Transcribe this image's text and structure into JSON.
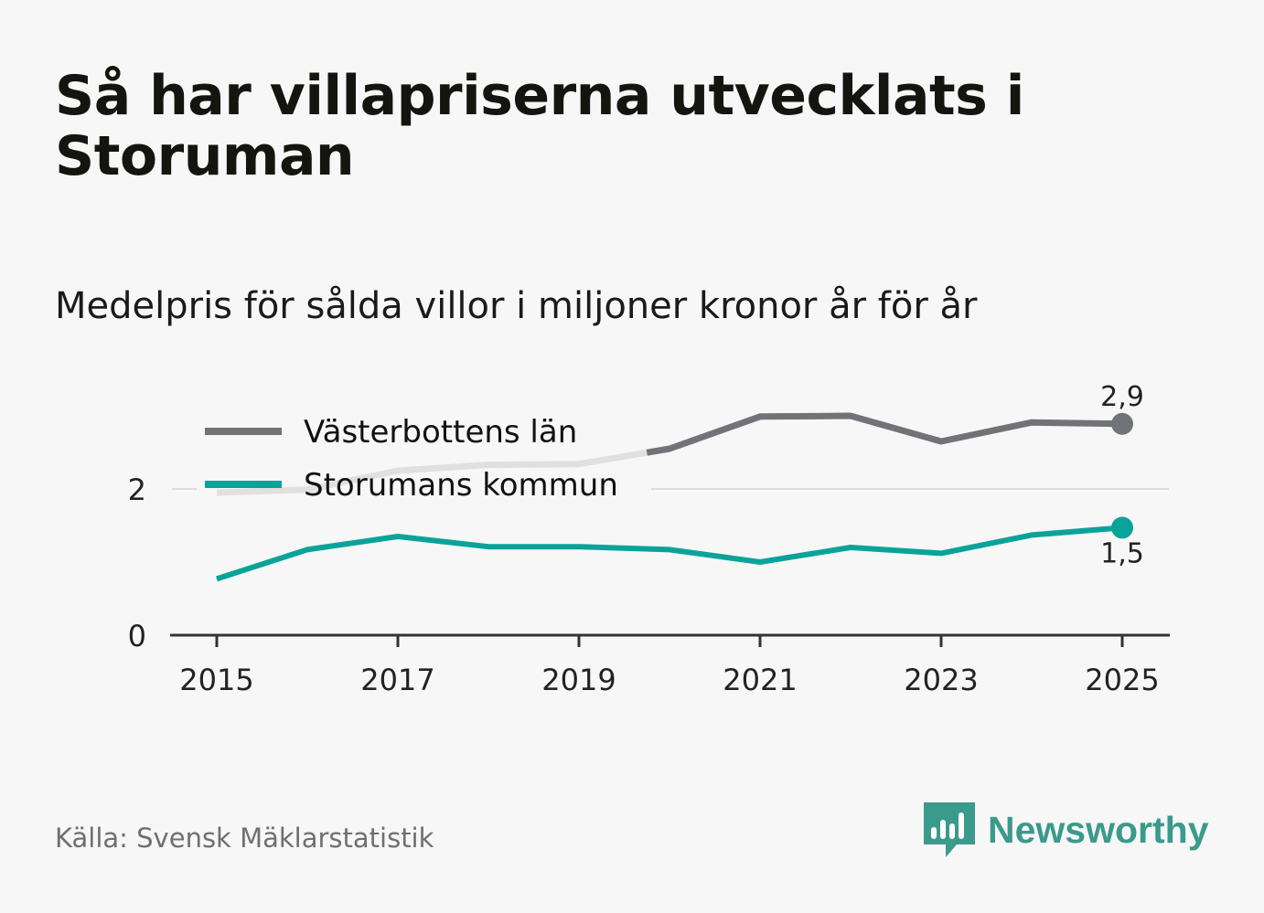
{
  "header": {
    "title": "Så har villapriserna utvecklats i Storuman",
    "subtitle": "Medelpris för sålda villor i miljoner kronor år för år"
  },
  "footer": {
    "source": "Källa: Svensk Mäklarstatistik",
    "brand": "Newsworthy"
  },
  "icons": {
    "logo": "bar-chart-speech-bubble-icon"
  },
  "colors": {
    "series_lan": "#727279",
    "series_lan_faded": "#e0e0e0",
    "series_kommun": "#0aa39a",
    "gridline": "#dddddd",
    "axis": "#333333",
    "brand": "#3a9a8c"
  },
  "chart_data": {
    "type": "line",
    "title": "Så har villapriserna utvecklats i Storuman",
    "subtitle": "Medelpris för sålda villor i miljoner kronor år för år",
    "xlabel": "",
    "ylabel": "",
    "x": [
      2015,
      2016,
      2017,
      2018,
      2019,
      2020,
      2021,
      2022,
      2023,
      2024,
      2025
    ],
    "x_ticks": [
      "2015",
      "2017",
      "2019",
      "2021",
      "2023",
      "2025"
    ],
    "y_ticks": [
      "0",
      "2"
    ],
    "ylim": [
      0,
      3.2
    ],
    "grid": true,
    "legend": "top-left",
    "series": [
      {
        "name": "Västerbottens län",
        "values": [
          1.95,
          1.99,
          2.25,
          2.33,
          2.34,
          2.55,
          2.99,
          3.0,
          2.65,
          2.91,
          2.89
        ],
        "end_label": "2,9"
      },
      {
        "name": "Storumans kommun",
        "values": [
          0.77,
          1.17,
          1.35,
          1.21,
          1.21,
          1.17,
          1.0,
          1.2,
          1.12,
          1.37,
          1.47
        ],
        "end_label": "1,5"
      }
    ]
  }
}
